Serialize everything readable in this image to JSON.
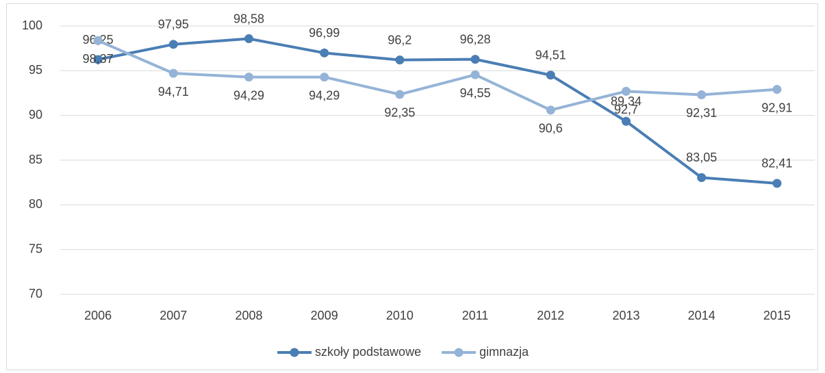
{
  "chart_data": {
    "type": "line",
    "categories": [
      "2006",
      "2007",
      "2008",
      "2009",
      "2010",
      "2011",
      "2012",
      "2013",
      "2014",
      "2015"
    ],
    "series": [
      {
        "name": "szkoły podstawowe",
        "color": "#4a7eb4",
        "values": [
          96.25,
          97.95,
          98.58,
          96.99,
          96.2,
          96.28,
          94.51,
          89.34,
          83.05,
          82.41
        ],
        "value_labels": [
          "96,25",
          "97,95",
          "98,58",
          "96,99",
          "96,2",
          "96,28",
          "94,51",
          "89,34",
          "83,05",
          "82,41"
        ]
      },
      {
        "name": "gimnazja",
        "color": "#95b3d7",
        "values": [
          98.37,
          94.71,
          94.29,
          94.29,
          92.35,
          94.55,
          90.6,
          92.7,
          92.31,
          92.91
        ],
        "value_labels": [
          "98,37",
          "94,71",
          "94,29",
          "94,29",
          "92,35",
          "94,55",
          "90,6",
          "92,7",
          "92,31",
          "92,91"
        ]
      }
    ],
    "ylim": [
      70,
      100
    ],
    "yticks": [
      70,
      75,
      80,
      85,
      90,
      95,
      100
    ],
    "grid": true,
    "legend": "bottom"
  }
}
